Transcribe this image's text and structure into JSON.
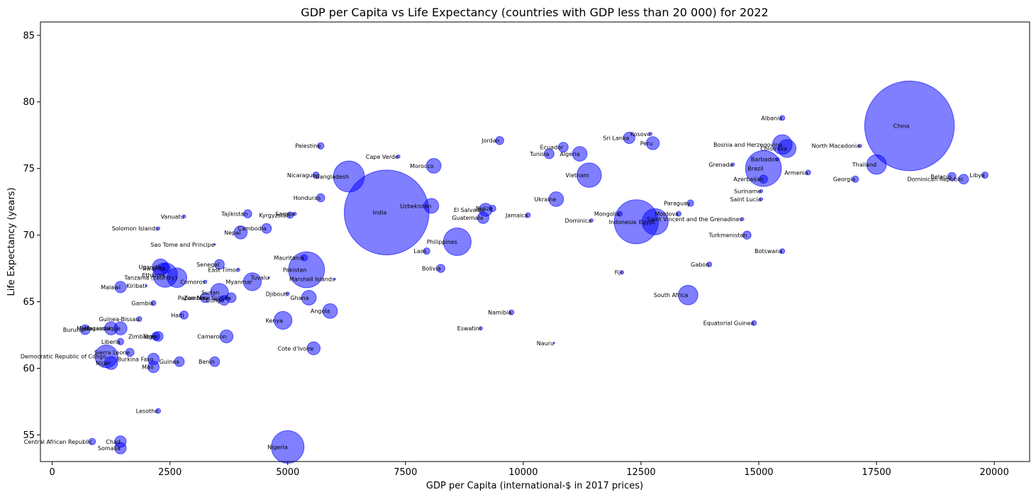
{
  "chart_data": {
    "type": "scatter",
    "title": "GDP per Capita vs Life Expectancy (countries with GDP less than 20 000) for 2022",
    "xlabel": "GDP per Capita (international-$ in 2017 prices)",
    "ylabel": "Life Expectancy (years)",
    "xlim": [
      -250,
      20750
    ],
    "ylim": [
      53,
      86
    ],
    "xticks": [
      0,
      2500,
      5000,
      7500,
      10000,
      12500,
      15000,
      17500,
      20000
    ],
    "yticks": [
      55,
      60,
      65,
      70,
      75,
      80,
      85
    ],
    "grid": false,
    "marker_color": "#0000ff",
    "size_encoding": "population",
    "points": [
      {
        "name": "China",
        "x": 18200,
        "y": 78.2,
        "size": 55
      },
      {
        "name": "India",
        "x": 7100,
        "y": 71.7,
        "size": 52
      },
      {
        "name": "Nigeria",
        "x": 5000,
        "y": 54.1,
        "size": 20
      },
      {
        "name": "Pakistan",
        "x": 5400,
        "y": 67.4,
        "size": 22
      },
      {
        "name": "Bangladesh",
        "x": 6300,
        "y": 74.4,
        "size": 19
      },
      {
        "name": "Indonesia",
        "x": 12400,
        "y": 71.0,
        "size": 27
      },
      {
        "name": "Egypt",
        "x": 12800,
        "y": 71.0,
        "size": 16
      },
      {
        "name": "Brazil",
        "x": 15100,
        "y": 75.0,
        "size": 22
      },
      {
        "name": "Philippines",
        "x": 8600,
        "y": 69.5,
        "size": 17
      },
      {
        "name": "Vietnam",
        "x": 11400,
        "y": 74.5,
        "size": 15
      },
      {
        "name": "Thailand",
        "x": 17500,
        "y": 75.3,
        "size": 12
      },
      {
        "name": "Colombia",
        "x": 15600,
        "y": 76.5,
        "size": 11
      },
      {
        "name": "Bosnia and Herzegovina",
        "x": 15500,
        "y": 76.8,
        "size": 12
      },
      {
        "name": "Kenya",
        "x": 4900,
        "y": 63.6,
        "size": 11
      },
      {
        "name": "South Africa",
        "x": 13500,
        "y": 65.5,
        "size": 12
      },
      {
        "name": "Algeria",
        "x": 11200,
        "y": 76.1,
        "size": 9
      },
      {
        "name": "Ukraine",
        "x": 10700,
        "y": 72.7,
        "size": 9
      },
      {
        "name": "Morocco",
        "x": 8100,
        "y": 75.2,
        "size": 9
      },
      {
        "name": "Uzbekistan",
        "x": 8050,
        "y": 72.2,
        "size": 9
      },
      {
        "name": "Myanmar",
        "x": 4250,
        "y": 66.5,
        "size": 11
      },
      {
        "name": "Sudan",
        "x": 3550,
        "y": 65.7,
        "size": 11
      },
      {
        "name": "Ethiopia",
        "x": 2400,
        "y": 67.0,
        "size": 15
      },
      {
        "name": "Tanzania (country)",
        "x": 2650,
        "y": 66.8,
        "size": 12
      },
      {
        "name": "Uganda",
        "x": 2300,
        "y": 67.6,
        "size": 10
      },
      {
        "name": "Ghana",
        "x": 5450,
        "y": 65.3,
        "size": 9
      },
      {
        "name": "Angola",
        "x": 5900,
        "y": 64.3,
        "size": 9
      },
      {
        "name": "Cote d'Ivoire",
        "x": 5550,
        "y": 61.5,
        "size": 8
      },
      {
        "name": "Cameroon",
        "x": 3700,
        "y": 62.4,
        "size": 8
      },
      {
        "name": "Nepal",
        "x": 4000,
        "y": 70.2,
        "size": 8
      },
      {
        "name": "Democratic Republic of Congo",
        "x": 1150,
        "y": 60.9,
        "size": 14
      },
      {
        "name": "Madagascar",
        "x": 1250,
        "y": 63.0,
        "size": 8
      },
      {
        "name": "Mozambique",
        "x": 1450,
        "y": 63.0,
        "size": 8
      },
      {
        "name": "Niger",
        "x": 1250,
        "y": 60.4,
        "size": 8
      },
      {
        "name": "Mali",
        "x": 2150,
        "y": 60.1,
        "size": 7
      },
      {
        "name": "Burkina Faso",
        "x": 2150,
        "y": 60.7,
        "size": 7
      },
      {
        "name": "Malawi",
        "x": 1450,
        "y": 66.1,
        "size": 7
      },
      {
        "name": "Zambia",
        "x": 3250,
        "y": 65.3,
        "size": 6
      },
      {
        "name": "Papua New Guinea",
        "x": 3800,
        "y": 65.3,
        "size": 6
      },
      {
        "name": "Congo",
        "x": 3650,
        "y": 65.1,
        "size": 6
      },
      {
        "name": "Senegal",
        "x": 3550,
        "y": 67.8,
        "size": 6
      },
      {
        "name": "Cambodia",
        "x": 4550,
        "y": 70.5,
        "size": 6
      },
      {
        "name": "Ecuador",
        "x": 10850,
        "y": 76.6,
        "size": 6
      },
      {
        "name": "Peru",
        "x": 12750,
        "y": 76.9,
        "size": 8
      },
      {
        "name": "Sri Lanka",
        "x": 12250,
        "y": 77.3,
        "size": 7
      },
      {
        "name": "Guatemala",
        "x": 9150,
        "y": 71.3,
        "size": 7
      },
      {
        "name": "El Salvador",
        "x": 9200,
        "y": 71.9,
        "size": 8
      },
      {
        "name": "Belize",
        "x": 9350,
        "y": 72.0,
        "size": 4
      },
      {
        "name": "Tunisia",
        "x": 10550,
        "y": 76.1,
        "size": 6
      },
      {
        "name": "Jordan",
        "x": 9500,
        "y": 77.1,
        "size": 5
      },
      {
        "name": "Bolivia",
        "x": 8250,
        "y": 67.5,
        "size": 5
      },
      {
        "name": "Laos",
        "x": 7950,
        "y": 68.8,
        "size": 4
      },
      {
        "name": "Honduras",
        "x": 5700,
        "y": 72.8,
        "size": 5
      },
      {
        "name": "Nicaragua",
        "x": 5600,
        "y": 74.5,
        "size": 4
      },
      {
        "name": "Tajikistan",
        "x": 4150,
        "y": 71.6,
        "size": 5
      },
      {
        "name": "Kyrgyzstan",
        "x": 5050,
        "y": 71.5,
        "size": 4
      },
      {
        "name": "Samoa",
        "x": 5150,
        "y": 71.6,
        "size": 2
      },
      {
        "name": "Palestine",
        "x": 5700,
        "y": 76.7,
        "size": 4
      },
      {
        "name": "Guinea",
        "x": 2700,
        "y": 60.5,
        "size": 6
      },
      {
        "name": "Benin",
        "x": 3450,
        "y": 60.5,
        "size": 6
      },
      {
        "name": "Haiti",
        "x": 2800,
        "y": 64.0,
        "size": 5
      },
      {
        "name": "Chad",
        "x": 1450,
        "y": 54.5,
        "size": 7
      },
      {
        "name": "Somalia",
        "x": 1450,
        "y": 54.0,
        "size": 7
      },
      {
        "name": "Central African Republic",
        "x": 850,
        "y": 54.5,
        "size": 4
      },
      {
        "name": "Sierra Leone",
        "x": 1650,
        "y": 61.2,
        "size": 5
      },
      {
        "name": "Liberia",
        "x": 1450,
        "y": 62.0,
        "size": 4
      },
      {
        "name": "Zimbabwe",
        "x": 2250,
        "y": 62.4,
        "size": 6
      },
      {
        "name": "Togo",
        "x": 2200,
        "y": 62.4,
        "size": 5
      },
      {
        "name": "Burundi",
        "x": 700,
        "y": 62.9,
        "size": 6
      },
      {
        "name": "Rwanda",
        "x": 2400,
        "y": 67.5,
        "size": 6
      },
      {
        "name": "Mauritania",
        "x": 5350,
        "y": 68.3,
        "size": 4
      },
      {
        "name": "Kosovo",
        "x": 12700,
        "y": 77.6,
        "size": 2
      },
      {
        "name": "Albania",
        "x": 15500,
        "y": 78.8,
        "size": 3
      },
      {
        "name": "North Macedonia",
        "x": 17150,
        "y": 76.7,
        "size": 2
      },
      {
        "name": "Barbados",
        "x": 15400,
        "y": 75.7,
        "size": 2
      },
      {
        "name": "Grenada",
        "x": 14450,
        "y": 75.3,
        "size": 2
      },
      {
        "name": "Armenia",
        "x": 16050,
        "y": 74.7,
        "size": 3
      },
      {
        "name": "Azerbaijan",
        "x": 15100,
        "y": 74.2,
        "size": 5
      },
      {
        "name": "Georgia",
        "x": 17050,
        "y": 74.2,
        "size": 4
      },
      {
        "name": "Dominican Republic",
        "x": 19350,
        "y": 74.2,
        "size": 6
      },
      {
        "name": "Belarus",
        "x": 19100,
        "y": 74.4,
        "size": 5
      },
      {
        "name": "Libya",
        "x": 19800,
        "y": 74.5,
        "size": 4
      },
      {
        "name": "Suriname",
        "x": 15050,
        "y": 73.3,
        "size": 2
      },
      {
        "name": "Saint Lucia",
        "x": 15050,
        "y": 72.7,
        "size": 2
      },
      {
        "name": "Paraguay",
        "x": 13550,
        "y": 72.4,
        "size": 4
      },
      {
        "name": "Moldova",
        "x": 13300,
        "y": 71.6,
        "size": 3
      },
      {
        "name": "Saint Vincent and the Grenadines",
        "x": 14650,
        "y": 71.2,
        "size": 2
      },
      {
        "name": "Mongolia",
        "x": 12050,
        "y": 71.6,
        "size": 3
      },
      {
        "name": "Dominica",
        "x": 11450,
        "y": 71.1,
        "size": 2
      },
      {
        "name": "Jamaica",
        "x": 10100,
        "y": 71.5,
        "size": 3
      },
      {
        "name": "Turkmenistan",
        "x": 14750,
        "y": 70.0,
        "size": 5
      },
      {
        "name": "Botswana",
        "x": 15500,
        "y": 68.8,
        "size": 3
      },
      {
        "name": "Gabon",
        "x": 13950,
        "y": 67.8,
        "size": 3
      },
      {
        "name": "Fiji",
        "x": 12100,
        "y": 67.2,
        "size": 2
      },
      {
        "name": "Equatorial Guinea",
        "x": 14900,
        "y": 63.4,
        "size": 3
      },
      {
        "name": "Namibia",
        "x": 9750,
        "y": 64.2,
        "size": 3
      },
      {
        "name": "Eswatini",
        "x": 9100,
        "y": 63.0,
        "size": 2
      },
      {
        "name": "Nauru",
        "x": 10650,
        "y": 61.9,
        "size": 1
      },
      {
        "name": "Cape Verde",
        "x": 7350,
        "y": 75.9,
        "size": 2
      },
      {
        "name": "Lesotho",
        "x": 2250,
        "y": 56.8,
        "size": 3
      },
      {
        "name": "Gambia",
        "x": 2150,
        "y": 64.9,
        "size": 3
      },
      {
        "name": "Guinea-Bissau",
        "x": 1850,
        "y": 63.7,
        "size": 3
      },
      {
        "name": "Djibouti",
        "x": 5000,
        "y": 65.6,
        "size": 2
      },
      {
        "name": "Comoros",
        "x": 3250,
        "y": 66.5,
        "size": 2
      },
      {
        "name": "East Timor",
        "x": 3950,
        "y": 67.4,
        "size": 2
      },
      {
        "name": "Tuvalu",
        "x": 4600,
        "y": 66.8,
        "size": 1
      },
      {
        "name": "Marshall Islands",
        "x": 6000,
        "y": 66.7,
        "size": 1
      },
      {
        "name": "Kiribati",
        "x": 2000,
        "y": 66.2,
        "size": 1
      },
      {
        "name": "Vanuatu",
        "x": 2800,
        "y": 71.4,
        "size": 2
      },
      {
        "name": "Solomon Islands",
        "x": 2250,
        "y": 70.5,
        "size": 2
      },
      {
        "name": "Sao Tome and Principe",
        "x": 3450,
        "y": 69.3,
        "size": 1
      }
    ]
  }
}
